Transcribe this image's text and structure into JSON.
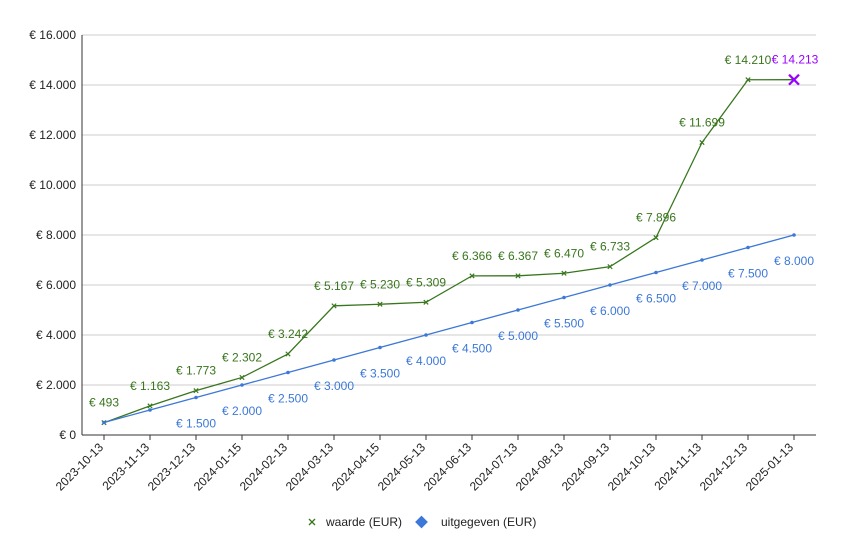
{
  "chart_data": {
    "type": "line",
    "title": "",
    "xlabel": "",
    "ylabel": "",
    "ylim": [
      0,
      16000
    ],
    "y_ticks": [
      0,
      2000,
      4000,
      6000,
      8000,
      10000,
      12000,
      14000,
      16000
    ],
    "y_tick_labels": [
      "€ 0",
      "€ 2.000",
      "€ 4.000",
      "€ 6.000",
      "€ 8.000",
      "€ 10.000",
      "€ 12.000",
      "€ 14.000",
      "€ 16.000"
    ],
    "grid": true,
    "legend_position": "bottom",
    "categories": [
      "2023-10-13",
      "2023-11-13",
      "2023-12-13",
      "2024-01-15",
      "2024-02-13",
      "2024-03-13",
      "2024-04-15",
      "2024-05-13",
      "2024-06-13",
      "2024-07-13",
      "2024-08-13",
      "2024-09-13",
      "2024-10-13",
      "2024-11-13",
      "2024-12-13",
      "2025-01-13"
    ],
    "series": [
      {
        "name": "waarde (EUR)",
        "color": "#38761d",
        "last_point_color": "#9900ff",
        "marker": "x",
        "values": [
          493,
          1163,
          1773,
          2302,
          3242,
          5167,
          5230,
          5309,
          6366,
          6367,
          6470,
          6733,
          7896,
          11699,
          14210,
          14213
        ],
        "labels": [
          "€ 493",
          "€ 1.163",
          "€ 1.773",
          "€ 2.302",
          "€ 3.242",
          "€ 5.167",
          "€ 5.230",
          "€ 5.309",
          "€ 6.366",
          "€ 6.367",
          "€ 6.470",
          "€ 6.733",
          "€ 7.896",
          "€ 11.699",
          "€ 14.210",
          "€ 14.213"
        ]
      },
      {
        "name": "uitgegeven (EUR)",
        "color": "#3c78d8",
        "marker": "diamond",
        "values": [
          500,
          1000,
          1500,
          2000,
          2500,
          3000,
          3500,
          4000,
          4500,
          5000,
          5500,
          6000,
          6500,
          7000,
          7500,
          8000
        ],
        "labels": [
          "",
          "",
          "€ 1.500",
          "€ 2.000",
          "€ 2.500",
          "€ 3.000",
          "€ 3.500",
          "€ 4.000",
          "€ 4.500",
          "€ 5.000",
          "€ 5.500",
          "€ 6.000",
          "€ 6.500",
          "€ 7.000",
          "€ 7.500",
          "€ 8.000"
        ]
      }
    ]
  }
}
